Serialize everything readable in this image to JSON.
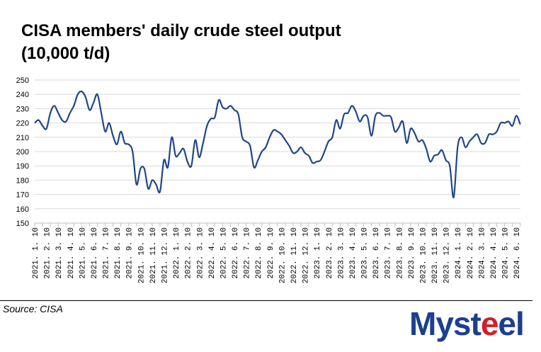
{
  "title_lines": [
    "CISA members' daily crude steel output",
    "(10,000 t/d)"
  ],
  "source": "Source: CISA",
  "logo": {
    "text": "Mysteel",
    "parts": [
      "Myst",
      "e",
      "el"
    ]
  },
  "colors": {
    "line": "#1f4788",
    "grid": "#d9d9d9",
    "logo_blue": "#1d3f8f",
    "logo_red": "#d0202a"
  },
  "chart_data": {
    "type": "line",
    "title": "CISA members' daily crude steel output (10,000 t/d)",
    "xlabel": "",
    "ylabel": "",
    "ylim": [
      150,
      250
    ],
    "yticks": [
      150,
      160,
      170,
      180,
      190,
      200,
      210,
      220,
      230,
      240,
      250
    ],
    "grid": true,
    "x_tick_labels": [
      "2021. 1. 10",
      "2021. 2. 10",
      "2021. 3. 10",
      "2021. 4. 10",
      "2021. 5. 10",
      "2021. 6. 10",
      "2021. 7. 10",
      "2021. 8. 10",
      "2021. 9. 10",
      "2021. 10. 10",
      "2021. 11. 10",
      "2021. 12. 10",
      "2022. 1. 10",
      "2022. 2. 10",
      "2022. 3. 10",
      "2022. 4. 10",
      "2022. 5. 10",
      "2022. 6. 10",
      "2022. 7. 10",
      "2022. 8. 10",
      "2022. 9. 10",
      "2022. 10. 10",
      "2022. 11. 10",
      "2022. 12. 10",
      "2023. 1. 10",
      "2023. 2. 10",
      "2023. 3. 10",
      "2023. 4. 10",
      "2023. 5. 10",
      "2023. 6. 10",
      "2023. 7. 10",
      "2023. 8. 10",
      "2023. 9. 10",
      "2023. 10. 10",
      "2023. 11. 10",
      "2023. 12. 10",
      "2024. 1. 10",
      "2024. 2. 10",
      "2024. 3. 10",
      "2024. 4. 10",
      "2024. 5. 10",
      "2024. 6. 10"
    ],
    "series": [
      {
        "name": "Daily crude steel output",
        "values": [
          220,
          222,
          218,
          216,
          227,
          232,
          227,
          222,
          221,
          227,
          232,
          240,
          242,
          238,
          229,
          234,
          240,
          227,
          214,
          220,
          211,
          205,
          214,
          206,
          205,
          200,
          177,
          188,
          188,
          174,
          180,
          177,
          172,
          194,
          189,
          210,
          197,
          199,
          202,
          193,
          190,
          208,
          196,
          206,
          218,
          223,
          224,
          236,
          231,
          230,
          232,
          229,
          226,
          210,
          207,
          204,
          189,
          194,
          200,
          203,
          210,
          215,
          214,
          212,
          208,
          204,
          199,
          200,
          203,
          199,
          197,
          192,
          193,
          194,
          200,
          207,
          210,
          222,
          216,
          226,
          227,
          232,
          228,
          221,
          225,
          224,
          211,
          225,
          227,
          225,
          225,
          224,
          214,
          217,
          221,
          206,
          216,
          213,
          207,
          208,
          202,
          193,
          197,
          198,
          201,
          194,
          190,
          168,
          203,
          210,
          203,
          207,
          210,
          212,
          206,
          206,
          212,
          212,
          214,
          220,
          220,
          221,
          218,
          225,
          219
        ]
      }
    ]
  }
}
